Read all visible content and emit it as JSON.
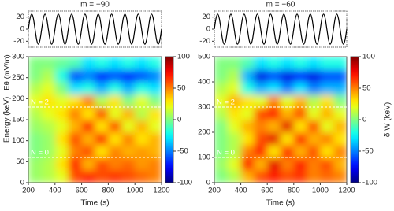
{
  "chart_data": [
    {
      "type": "line",
      "title": "m = −90",
      "ylabel": "Eθ (mV/m)",
      "color": "#000000",
      "x": [
        200,
        212.5,
        225,
        237.5,
        250,
        262.5,
        275,
        287.5,
        300,
        312.5,
        325,
        337.5,
        350,
        362.5,
        375,
        387.5,
        400,
        412.5,
        425,
        437.5,
        450,
        462.5,
        475,
        487.5,
        500,
        512.5,
        525,
        537.5,
        550,
        562.5,
        575,
        587.5,
        600,
        612.5,
        625,
        637.5,
        650,
        662.5,
        675,
        687.5,
        700,
        712.5,
        725,
        737.5,
        750,
        762.5,
        775,
        787.5,
        800,
        812.5,
        825,
        837.5,
        850,
        862.5,
        875,
        887.5,
        900,
        912.5,
        925,
        937.5,
        950,
        962.5,
        975,
        987.5,
        1000,
        1012.5,
        1025,
        1037.5,
        1050,
        1062.5,
        1075,
        1087.5,
        1100,
        1112.5,
        1125,
        1137.5,
        1150,
        1162.5,
        1175,
        1187.5,
        1200
      ],
      "values": [
        0,
        17.7,
        25,
        17.7,
        0,
        -17.7,
        -25,
        -17.7,
        0,
        17.7,
        25,
        17.7,
        0,
        -17.7,
        -25,
        -17.7,
        0,
        17.7,
        25,
        17.7,
        0,
        -17.7,
        -25,
        -17.7,
        0,
        17.7,
        25,
        17.7,
        0,
        -17.7,
        -25,
        -17.7,
        0,
        17.7,
        25,
        17.7,
        0,
        -17.7,
        -25,
        -17.7,
        0,
        17.7,
        25,
        17.7,
        0,
        -17.7,
        -25,
        -17.7,
        0,
        17.7,
        25,
        17.7,
        0,
        -17.7,
        -25,
        -17.7,
        0,
        17.7,
        25,
        17.7,
        0,
        -17.7,
        -25,
        -17.7,
        0,
        17.7,
        25,
        17.7,
        0,
        -17.7,
        -25,
        -17.7,
        0,
        17.7,
        25,
        17.7,
        0,
        -17.7,
        -25,
        -17.7,
        0
      ],
      "xlim": [
        200,
        1200
      ],
      "ylim": [
        -30,
        30
      ],
      "yticks": [
        -20,
        0,
        20
      ]
    },
    {
      "type": "heatmap",
      "xlabel": "Time (s)",
      "ylabel": "Energy (keV)",
      "x": [
        250,
        350,
        450,
        550,
        650,
        750,
        850,
        950,
        1050,
        1150
      ],
      "y": [
        15,
        45,
        75,
        105,
        135,
        165,
        195,
        225,
        255,
        285
      ],
      "z": [
        [
          5,
          10,
          20,
          60,
          70,
          60,
          65,
          60,
          55,
          50
        ],
        [
          5,
          10,
          30,
          70,
          40,
          60,
          50,
          55,
          45,
          50
        ],
        [
          0,
          5,
          20,
          50,
          60,
          30,
          50,
          40,
          45,
          40
        ],
        [
          0,
          5,
          30,
          60,
          40,
          70,
          30,
          50,
          30,
          40
        ],
        [
          5,
          10,
          20,
          40,
          70,
          30,
          60,
          20,
          40,
          20
        ],
        [
          10,
          20,
          30,
          50,
          30,
          60,
          20,
          40,
          10,
          30
        ],
        [
          20,
          30,
          20,
          30,
          50,
          10,
          30,
          0,
          20,
          0
        ],
        [
          10,
          20,
          0,
          -30,
          -20,
          -40,
          -20,
          -40,
          -20,
          -30
        ],
        [
          0,
          10,
          -20,
          -60,
          -50,
          -70,
          -60,
          -70,
          -60,
          -50
        ],
        [
          0,
          0,
          -5,
          -10,
          -30,
          -20,
          -30,
          -20,
          -30,
          -20
        ]
      ],
      "xlim": [
        200,
        1200
      ],
      "ylim": [
        0,
        300
      ],
      "xticks": [
        200,
        400,
        600,
        800,
        1000,
        1200
      ],
      "yticks": [
        0,
        50,
        100,
        150,
        200,
        250,
        300
      ],
      "zlim": [
        -100,
        100
      ],
      "zticks": [
        -100,
        -50,
        0,
        50,
        100
      ],
      "hlines": [
        {
          "y": 180,
          "label": "N = 2"
        },
        {
          "y": 60,
          "label": "N = 0"
        }
      ]
    },
    {
      "type": "line",
      "title": "m = −60",
      "color": "#000000",
      "x": [
        200,
        212.5,
        225,
        237.5,
        250,
        262.5,
        275,
        287.5,
        300,
        312.5,
        325,
        337.5,
        350,
        362.5,
        375,
        387.5,
        400,
        412.5,
        425,
        437.5,
        450,
        462.5,
        475,
        487.5,
        500,
        512.5,
        525,
        537.5,
        550,
        562.5,
        575,
        587.5,
        600,
        612.5,
        625,
        637.5,
        650,
        662.5,
        675,
        687.5,
        700,
        712.5,
        725,
        737.5,
        750,
        762.5,
        775,
        787.5,
        800,
        812.5,
        825,
        837.5,
        850,
        862.5,
        875,
        887.5,
        900,
        912.5,
        925,
        937.5,
        950,
        962.5,
        975,
        987.5,
        1000,
        1012.5,
        1025,
        1037.5,
        1050,
        1062.5,
        1075,
        1087.5,
        1100,
        1112.5,
        1125,
        1137.5,
        1150,
        1162.5,
        1175,
        1187.5,
        1200
      ],
      "values": [
        0,
        17.7,
        25,
        17.7,
        0,
        -17.7,
        -25,
        -17.7,
        0,
        17.7,
        25,
        17.7,
        0,
        -17.7,
        -25,
        -17.7,
        0,
        17.7,
        25,
        17.7,
        0,
        -17.7,
        -25,
        -17.7,
        0,
        17.7,
        25,
        17.7,
        0,
        -17.7,
        -25,
        -17.7,
        0,
        17.7,
        25,
        17.7,
        0,
        -17.7,
        -25,
        -17.7,
        0,
        17.7,
        25,
        17.7,
        0,
        -17.7,
        -25,
        -17.7,
        0,
        17.7,
        25,
        17.7,
        0,
        -17.7,
        -25,
        -17.7,
        0,
        17.7,
        25,
        17.7,
        0,
        -17.7,
        -25,
        -17.7,
        0,
        17.7,
        25,
        17.7,
        0,
        -17.7,
        -25,
        -17.7,
        0,
        17.7,
        25,
        17.7,
        0,
        -17.7,
        -25,
        -17.7,
        0
      ],
      "xlim": [
        200,
        1200
      ],
      "ylim": [
        -30,
        30
      ],
      "yticks": [
        -20,
        0,
        20
      ]
    },
    {
      "type": "heatmap",
      "xlabel": "Time (s)",
      "colorbar_label": "δ W (keV)",
      "x": [
        250,
        350,
        450,
        550,
        650,
        750,
        850,
        950,
        1050,
        1150
      ],
      "y": [
        25,
        75,
        125,
        175,
        225,
        275,
        325,
        375,
        425,
        475
      ],
      "z": [
        [
          0,
          10,
          40,
          60,
          70,
          60,
          65,
          50,
          55,
          50
        ],
        [
          5,
          20,
          70,
          40,
          80,
          50,
          70,
          50,
          60,
          40
        ],
        [
          0,
          10,
          50,
          70,
          30,
          70,
          40,
          60,
          30,
          50
        ],
        [
          0,
          10,
          30,
          60,
          80,
          30,
          70,
          40,
          50,
          30
        ],
        [
          0,
          20,
          40,
          50,
          40,
          80,
          30,
          60,
          20,
          40
        ],
        [
          10,
          30,
          20,
          60,
          70,
          40,
          60,
          20,
          40,
          20
        ],
        [
          20,
          40,
          30,
          20,
          50,
          20,
          40,
          10,
          30,
          0
        ],
        [
          10,
          20,
          -20,
          -40,
          -30,
          -50,
          -30,
          -50,
          -40,
          -40
        ],
        [
          0,
          10,
          -40,
          -80,
          -60,
          -80,
          -70,
          -80,
          -60,
          -60
        ],
        [
          0,
          0,
          -10,
          -30,
          -20,
          -30,
          -20,
          -30,
          -20,
          -20
        ]
      ],
      "xlim": [
        200,
        1200
      ],
      "ylim": [
        0,
        500
      ],
      "xticks": [
        200,
        400,
        600,
        800,
        1000,
        1200
      ],
      "yticks": [
        0,
        100,
        200,
        300,
        400,
        500
      ],
      "zlim": [
        -100,
        100
      ],
      "zticks": [
        -100,
        -50,
        0,
        50,
        100
      ],
      "hlines": [
        {
          "y": 300,
          "label": "N = 2"
        },
        {
          "y": 100,
          "label": "N = 0"
        }
      ]
    }
  ]
}
